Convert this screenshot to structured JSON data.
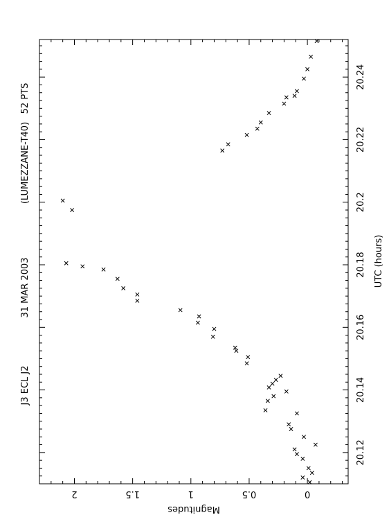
{
  "chart_data": {
    "type": "scatter",
    "title_parts": [
      "J3 ECL J2",
      "31 MAR 2003",
      "(LUMEZZANE-T40)",
      "52 PTS"
    ],
    "xlabel": "UTC (hours)",
    "ylabel": "Magnitudes",
    "xlim": [
      20.11,
      20.252
    ],
    "ylim": [
      2.3,
      -0.35
    ],
    "x_ticks": [
      20.12,
      20.14,
      20.16,
      20.18,
      20.2,
      20.22,
      20.24
    ],
    "x_tick_labels": [
      "20.12",
      "20.14",
      "20.16",
      "20.18",
      "20.2",
      "20.22",
      "20.24"
    ],
    "y_ticks": [
      0,
      0.5,
      1,
      1.5,
      2
    ],
    "y_tick_labels": [
      "0",
      "0.5",
      "1",
      "1.5",
      "2"
    ],
    "orientation": "rotated-90",
    "marker": "x",
    "grid": false,
    "legend": "none",
    "series": [
      {
        "x": [
          20.1105,
          20.112,
          20.1135,
          20.115,
          20.118,
          20.1195,
          20.121,
          20.1225,
          20.125,
          20.1275,
          20.129,
          20.1325,
          20.1335,
          20.1365,
          20.138,
          20.1395,
          20.1408,
          20.142,
          20.1432,
          20.1445,
          20.1485,
          20.1505,
          20.1525,
          20.1535,
          20.157,
          20.1595,
          20.1615,
          20.1635,
          20.1655,
          20.1685,
          20.1705,
          20.1725,
          20.1755,
          20.1785,
          20.1795,
          20.1805,
          20.1975,
          20.2005,
          20.2165,
          20.2185,
          20.2215,
          20.2235,
          20.2255,
          20.2285,
          20.2315,
          20.2335,
          20.234,
          20.2355,
          20.2395,
          20.2425,
          20.2465,
          20.2515
        ],
        "y": [
          -0.02,
          0.04,
          -0.04,
          -0.01,
          0.04,
          0.09,
          0.11,
          -0.07,
          0.03,
          0.14,
          0.16,
          0.09,
          0.36,
          0.34,
          0.29,
          0.18,
          0.33,
          0.3,
          0.27,
          0.23,
          0.52,
          0.51,
          0.61,
          0.62,
          0.81,
          0.8,
          0.94,
          0.93,
          1.09,
          1.46,
          1.46,
          1.58,
          1.63,
          1.75,
          1.93,
          2.07,
          2.02,
          2.1,
          0.73,
          0.68,
          0.52,
          0.43,
          0.4,
          0.33,
          0.2,
          0.18,
          0.11,
          0.09,
          0.03,
          0.0,
          -0.03,
          -0.08
        ]
      }
    ]
  }
}
